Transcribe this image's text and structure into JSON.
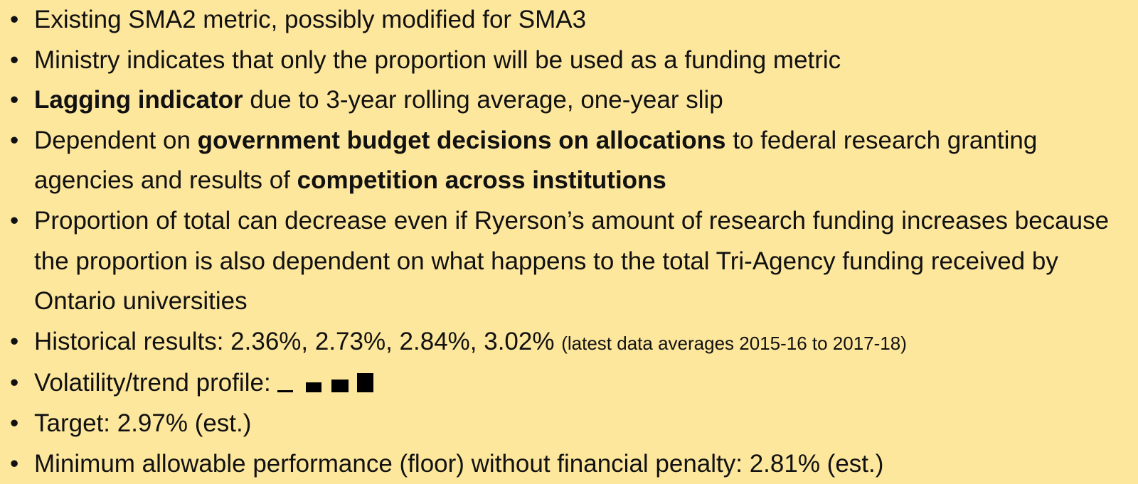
{
  "bullets": [
    [
      {
        "text": "Existing SMA2 metric, possibly modified for SMA3"
      }
    ],
    [
      {
        "text": "Ministry indicates that only the proportion will be used as a funding metric"
      }
    ],
    [
      {
        "text": "Lagging indicator",
        "bold": true
      },
      {
        "text": " due to 3-year rolling average, one-year slip"
      }
    ],
    [
      {
        "text": "Dependent on "
      },
      {
        "text": "government budget decisions on allocations",
        "bold": true
      },
      {
        "text": " to federal research granting agencies and results of "
      },
      {
        "text": "competition across institutions",
        "bold": true
      }
    ],
    [
      {
        "text": "Proportion of total can decrease even if Ryerson’s amount of research funding increases because the proportion is also dependent on what happens to the total Tri-Agency funding received by Ontario universities"
      }
    ],
    [
      {
        "text": "Historical results: 2.36%, 2.73%, 2.84%, 3.02% "
      },
      {
        "text": "(latest data averages 2015-16 to 2017-18)",
        "small": true
      }
    ],
    [
      {
        "text": "Volatility/trend profile: "
      }
    ],
    [
      {
        "text": "Target: 2.97% (est.)"
      }
    ],
    [
      {
        "text": "Minimum allowable performance (floor) without financial penalty: 2.81% (est.)"
      }
    ]
  ]
}
